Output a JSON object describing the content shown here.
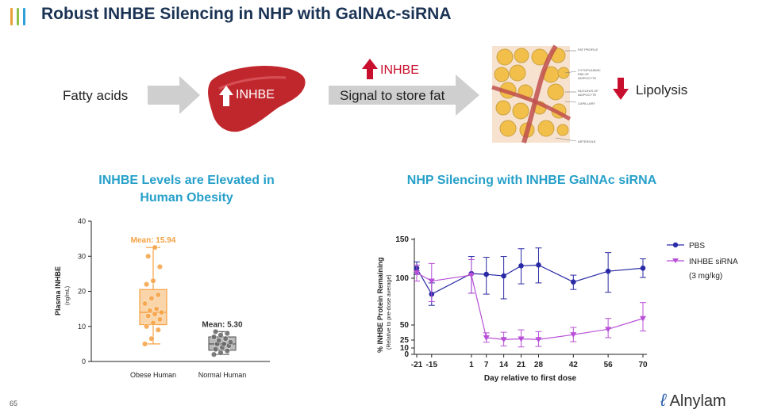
{
  "header": {
    "title": "Robust INHBE Silencing in NHP with GalNAc-siRNA",
    "accent_colors": [
      "#e8a13a",
      "#8fc04a",
      "#2f9fd8"
    ]
  },
  "pathway": {
    "step1": "Fatty acids",
    "liver_label": "INHBE",
    "up_label": "INHBE",
    "signal": "Signal to store fat",
    "lipolysis": "Lipolysis",
    "adipose_labels": [
      "FAT PROFILE",
      "CYTOPLASMIC RIM OF ADIPOCYTE",
      "NUCLEUS OF ADIPOCYTE",
      "CAPILLARY",
      "ARTERIOLE"
    ],
    "colors": {
      "arrow": "#cccccc",
      "liver": "#c0272d",
      "up_arrow": "#c8102e"
    }
  },
  "left_panel": {
    "title_line1": "INHBE Levels are Elevated in",
    "title_line2": "Human Obesity"
  },
  "right_panel": {
    "title": "NHP Silencing with INHBE GalNAc siRNA"
  },
  "footer": {
    "slide_number": "65",
    "brand": "Alnylam"
  },
  "chart_data": [
    {
      "type": "box",
      "title": "INHBE Levels are Elevated in Human Obesity",
      "ylabel": "Plasma INHBE",
      "ylabel_units": "(ng/mL)",
      "ylim": [
        0,
        40
      ],
      "yticks": [
        0,
        10,
        20,
        30,
        40
      ],
      "groups": [
        {
          "name": "Obese Human",
          "mean_label": "Mean: 15.94",
          "color": "#f5a142",
          "whisker_low": 5,
          "q1": 10.5,
          "median": 14,
          "q3": 20.5,
          "whisker_high": 32.5,
          "points": [
            5,
            6.5,
            9,
            10,
            11,
            12,
            13,
            13.5,
            14,
            14.5,
            15,
            16.5,
            18,
            19,
            22,
            23,
            27,
            30,
            32.5
          ]
        },
        {
          "name": "Normal Human",
          "mean_label": "Mean: 5.30",
          "color": "#666666",
          "whisker_low": 2,
          "q1": 3.2,
          "median": 5,
          "q3": 7,
          "whisker_high": 8.5,
          "points": [
            2,
            2.5,
            3,
            3.5,
            4,
            4.5,
            5,
            5,
            5.5,
            6,
            6.5,
            7,
            7.5,
            8,
            8.5
          ]
        }
      ]
    },
    {
      "type": "line",
      "title": "NHP Silencing with INHBE GalNAc siRNA",
      "xlabel": "Day relative to first dose",
      "ylabel": "% INHBE Protein Remaining",
      "ylabel_sub": "(Relative to pre-dose average)",
      "ylim": [
        0,
        150
      ],
      "yticks": [
        0,
        10,
        25,
        50,
        100,
        150
      ],
      "xlim": [
        -21,
        70
      ],
      "xticks": [
        -21,
        -15,
        1,
        7,
        14,
        21,
        28,
        42,
        56,
        70
      ],
      "xtick_labels": [
        "-21",
        "-15",
        "1",
        "7",
        "14",
        "21",
        "28",
        "42",
        "56",
        "70"
      ],
      "legend_note": "(3 mg/kg)",
      "series": [
        {
          "name": "PBS",
          "marker": "circle",
          "color": "#2a2aa6",
          "x": [
            -21,
            -15,
            1,
            7,
            14,
            21,
            28,
            42,
            56,
            70
          ],
          "y": [
            113,
            83,
            106,
            105,
            103,
            116,
            117,
            96,
            109,
            113
          ],
          "err": [
            8,
            12,
            22,
            22,
            25,
            22,
            22,
            8,
            24,
            12
          ]
        },
        {
          "name": "INHBE siRNA",
          "marker": "triangle-down",
          "color": "#b84fd6",
          "x": [
            -21,
            -15,
            1,
            7,
            14,
            21,
            28,
            42,
            56,
            70
          ],
          "y": [
            107,
            97,
            104,
            29,
            26,
            27,
            26,
            34,
            43,
            57
          ],
          "err": [
            10,
            22,
            20,
            8,
            12,
            15,
            13,
            12,
            14,
            17
          ]
        }
      ]
    }
  ]
}
